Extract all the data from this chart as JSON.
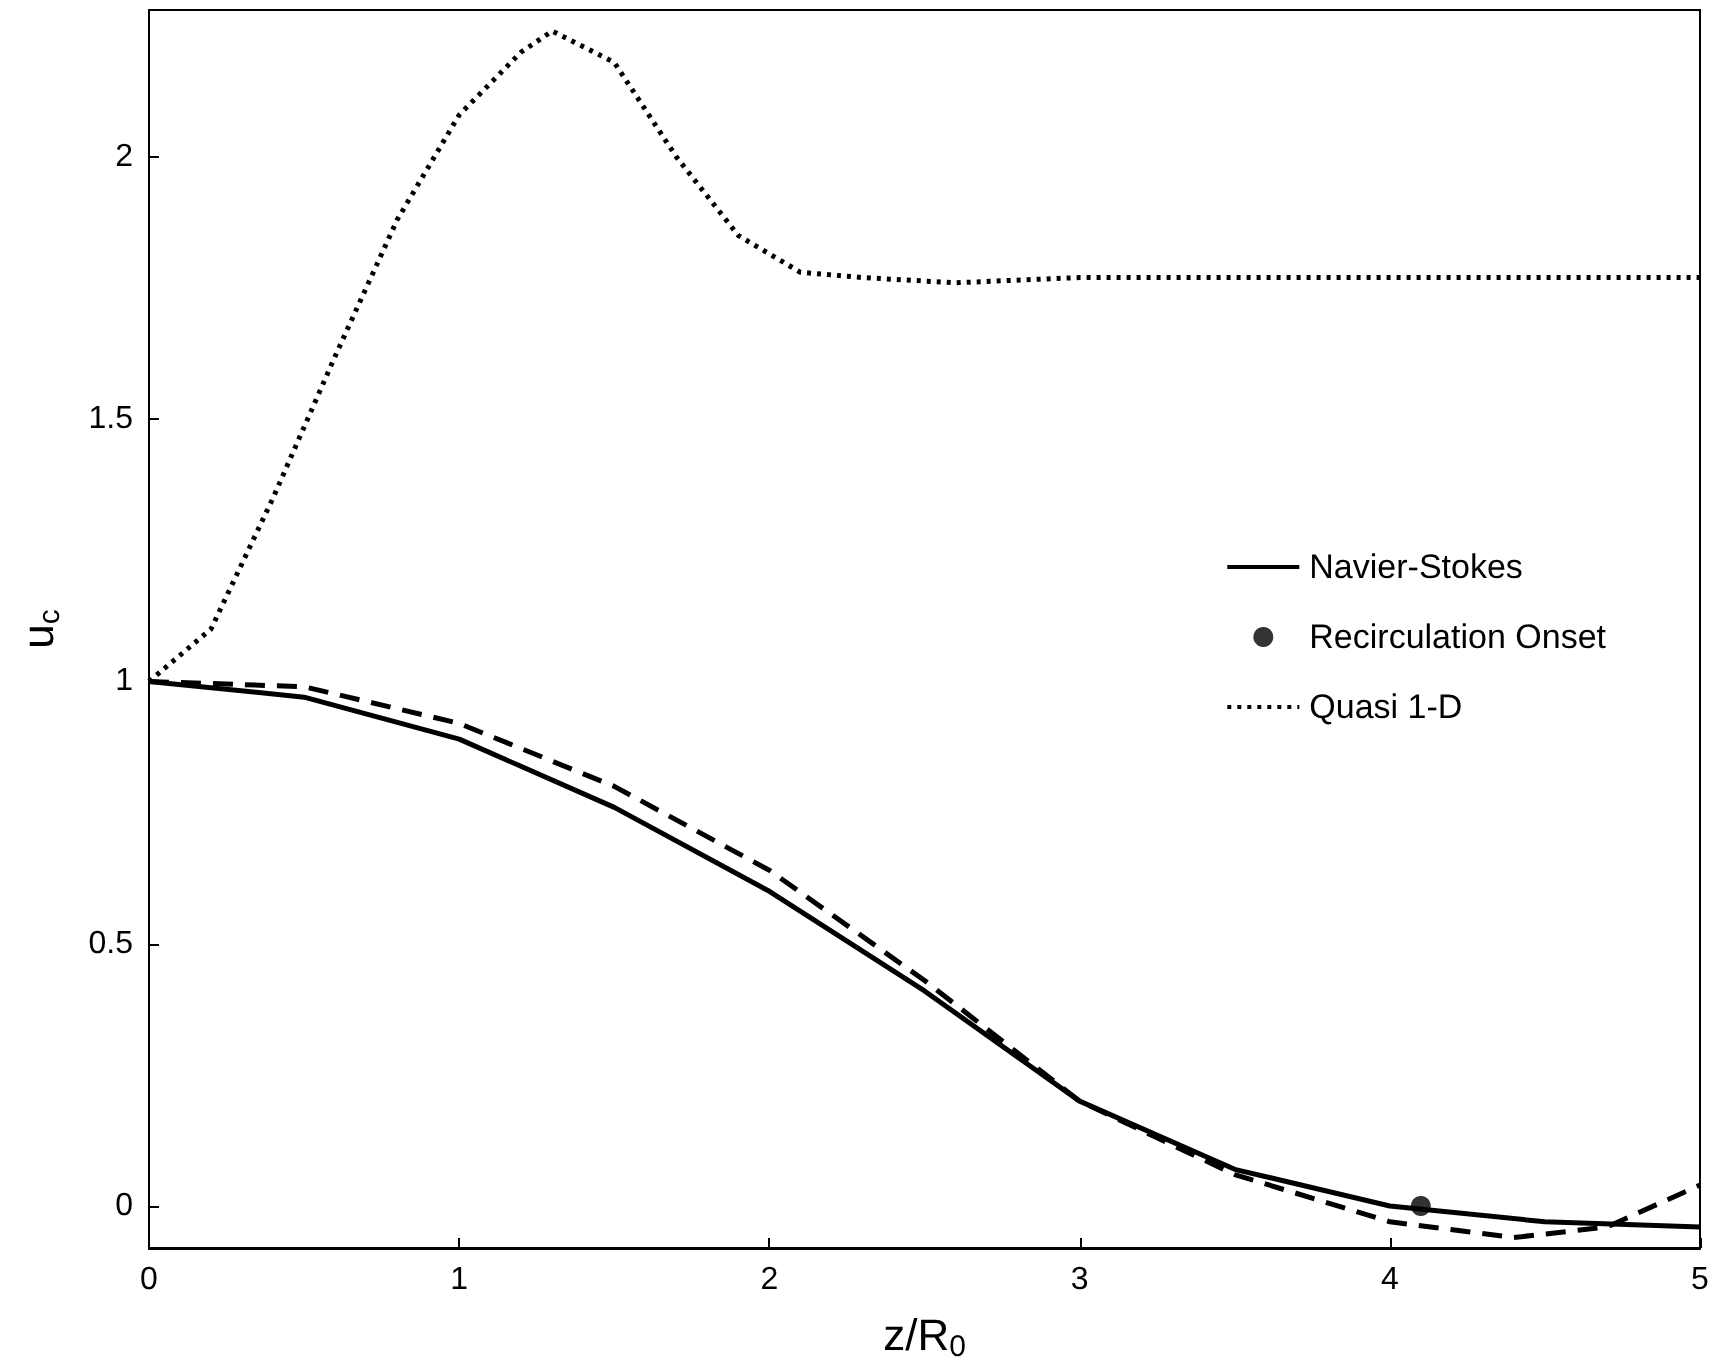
{
  "chart_data": {
    "type": "line",
    "xlabel": "z/R$_{0}$",
    "ylabel": "u$_{c}$",
    "xlim": [
      0,
      5
    ],
    "ylim": [
      -0.08,
      2.28
    ],
    "xticks": [
      0,
      1,
      2,
      3,
      4,
      5
    ],
    "yticks": [
      0,
      0.5,
      1,
      1.5,
      2
    ],
    "grid": false,
    "legend": "right",
    "series": [
      {
        "name": "Navier-Stokes",
        "color": "#000000",
        "line_style": "solid",
        "marker": "none",
        "x": [
          0,
          0.5,
          1,
          1.5,
          2,
          2.5,
          3,
          3.5,
          4,
          4.5,
          5
        ],
        "values": [
          1,
          0.97,
          0.89,
          0.76,
          0.6,
          0.41,
          0.2,
          0.07,
          0.0,
          -0.03,
          -0.04
        ]
      },
      {
        "name": "Recirculation Onset",
        "type": "scatter",
        "color": "#000000",
        "marker": "circle",
        "x": [
          4.1
        ],
        "values": [
          0
        ]
      },
      {
        "color": "#000000",
        "line_style": "dashed",
        "marker": "none",
        "x": [
          0,
          0.5,
          1,
          1.5,
          2,
          2.5,
          3,
          3.5,
          4,
          4.4,
          4.7,
          5
        ],
        "values": [
          1,
          0.99,
          0.92,
          0.8,
          0.64,
          0.43,
          0.2,
          0.06,
          -0.03,
          -0.06,
          -0.04,
          0.04
        ]
      },
      {
        "name": "Quasi 1-D",
        "color": "#000000",
        "line_style": "dotted",
        "marker": "none",
        "x": [
          0,
          0.2,
          0.4,
          0.6,
          0.8,
          1,
          1.2,
          1.3,
          1.5,
          1.7,
          1.9,
          2.1,
          2.3,
          2.6,
          3,
          3.5,
          4,
          5
        ],
        "values": [
          1,
          1.1,
          1.35,
          1.62,
          1.88,
          2.08,
          2.2,
          2.24,
          2.18,
          2.0,
          1.85,
          1.78,
          1.77,
          1.76,
          1.77,
          1.77,
          1.77,
          1.77
        ]
      }
    ]
  }
}
